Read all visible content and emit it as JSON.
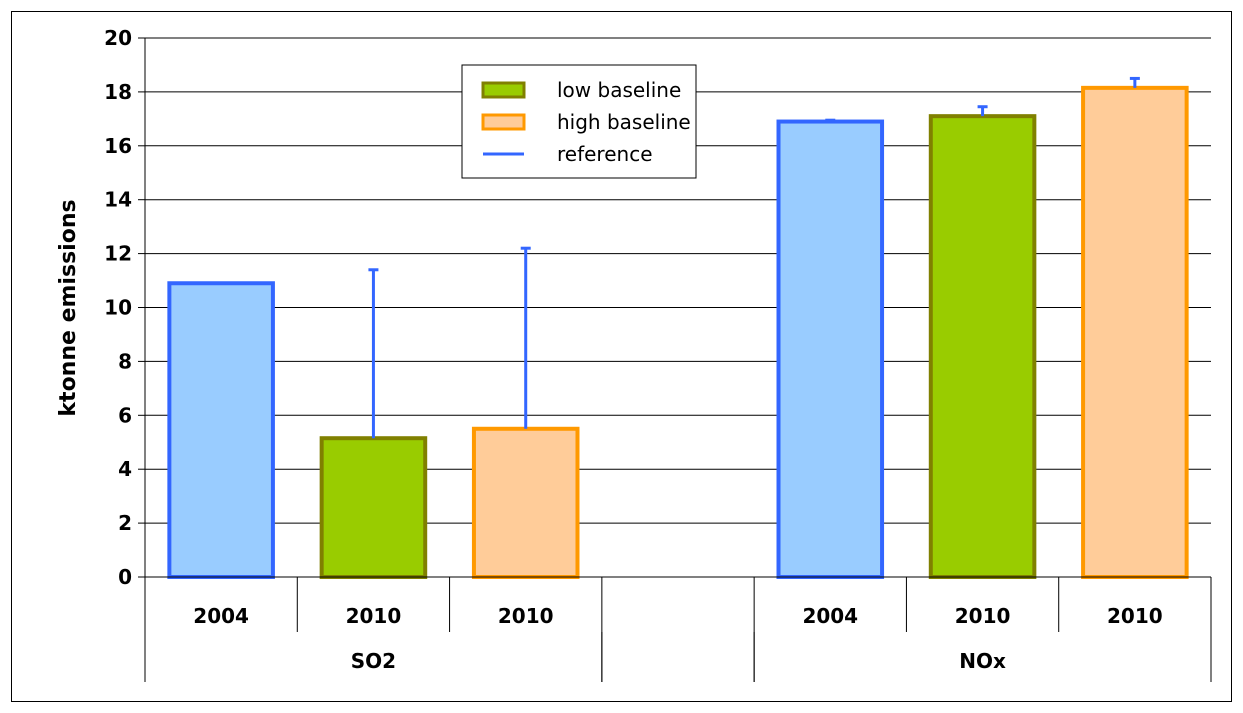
{
  "chart_data": {
    "type": "bar",
    "title": "",
    "ylabel": "ktonne emissions",
    "xlabel": "",
    "ylim": [
      0,
      20
    ],
    "ytick_step": 2,
    "grid": true,
    "legend_position": "top-center",
    "legend": [
      {
        "label": "low baseline",
        "kind": "box",
        "fill": "#99cc00",
        "stroke": "#808000"
      },
      {
        "label": "high baseline",
        "kind": "box",
        "fill": "#ffcc99",
        "stroke": "#ff9900"
      },
      {
        "label": "reference",
        "kind": "line",
        "stroke": "#3366ff"
      }
    ],
    "groups": [
      {
        "label": "SO2",
        "bars": [
          {
            "label": "2004",
            "value": 10.9,
            "fill": "#99ccff",
            "stroke": "#3366ff",
            "error_high": null
          },
          {
            "label": "2010",
            "value": 5.15,
            "fill": "#99cc00",
            "stroke": "#808000",
            "error_high": 11.4
          },
          {
            "label": "2010",
            "value": 5.5,
            "fill": "#ffcc99",
            "stroke": "#ff9900",
            "error_high": 12.2
          }
        ]
      },
      {
        "label": "",
        "bars": []
      },
      {
        "label": "NOx",
        "bars": [
          {
            "label": "2004",
            "value": 16.9,
            "fill": "#99ccff",
            "stroke": "#3366ff",
            "error_high": 16.95
          },
          {
            "label": "2010",
            "value": 17.1,
            "fill": "#99cc00",
            "stroke": "#808000",
            "error_high": 17.45
          },
          {
            "label": "2010",
            "value": 18.15,
            "fill": "#ffcc99",
            "stroke": "#ff9900",
            "error_high": 18.5
          }
        ]
      }
    ],
    "error_bar_color": "#3366ff"
  }
}
